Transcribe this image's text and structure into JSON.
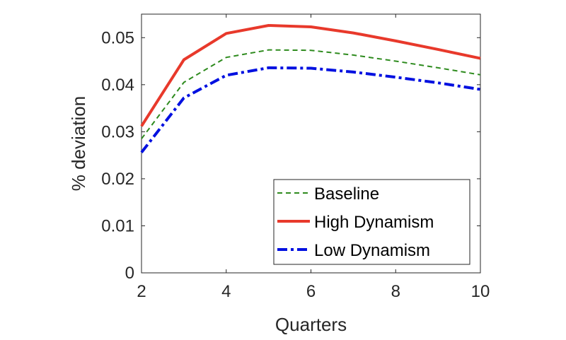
{
  "chart_data": {
    "type": "line",
    "title": "",
    "xlabel": "Quarters",
    "ylabel": "% deviation",
    "xlim": [
      2,
      10
    ],
    "ylim": [
      0,
      0.055
    ],
    "xticks": [
      2,
      4,
      6,
      8,
      10
    ],
    "xtick_labels": [
      "2",
      "4",
      "6",
      "8",
      "10"
    ],
    "yticks": [
      0,
      0.01,
      0.02,
      0.03,
      0.04,
      0.05
    ],
    "ytick_labels": [
      "0",
      "0.01",
      "0.02",
      "0.03",
      "0.04",
      "0.05"
    ],
    "grid": false,
    "box": true,
    "legend_position": "bottom-right",
    "x": [
      2,
      3,
      4,
      5,
      6,
      7,
      8,
      9,
      10
    ],
    "series": [
      {
        "name": "Baseline",
        "color": "#2e8b1e",
        "style": "dashed",
        "values": [
          0.0285,
          0.0405,
          0.0458,
          0.0474,
          0.0473,
          0.0463,
          0.045,
          0.0436,
          0.0421
        ]
      },
      {
        "name": "High Dynamism",
        "color": "#e8392b",
        "style": "solid",
        "values": [
          0.0312,
          0.0453,
          0.0509,
          0.0526,
          0.0523,
          0.051,
          0.0493,
          0.0475,
          0.0456
        ]
      },
      {
        "name": "Low Dynamism",
        "color": "#0010e0",
        "style": "dashdot",
        "values": [
          0.0256,
          0.0372,
          0.042,
          0.0436,
          0.0435,
          0.0427,
          0.0416,
          0.0404,
          0.039
        ]
      }
    ]
  }
}
